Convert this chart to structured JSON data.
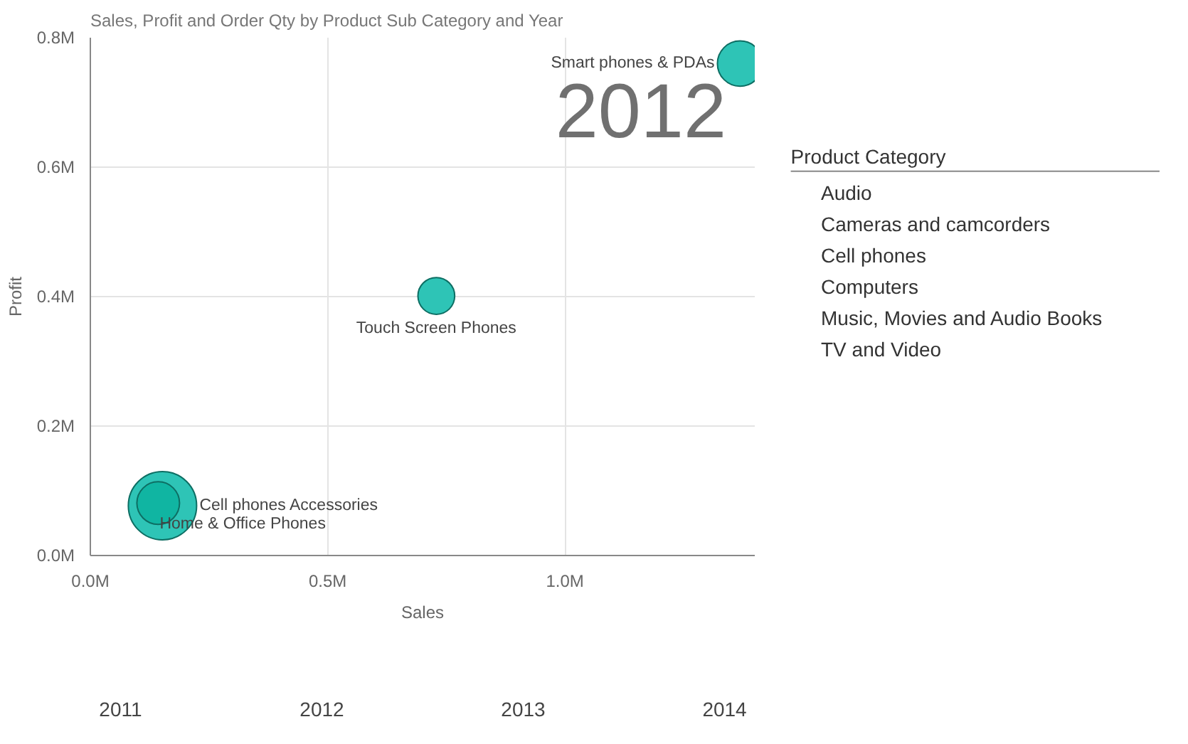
{
  "chart_data": {
    "type": "bubble",
    "title": "Sales, Profit and Order Qty by Product Sub Category and Year",
    "xlabel": "Sales",
    "ylabel": "Profit",
    "xlim": [
      0,
      1.4
    ],
    "ylim": [
      0,
      0.8
    ],
    "xticks": [
      {
        "value": 0,
        "label": "0.0M"
      },
      {
        "value": 0.5,
        "label": "0.5M"
      },
      {
        "value": 1.0,
        "label": "1.0M"
      }
    ],
    "yticks": [
      {
        "value": 0,
        "label": "0.0M"
      },
      {
        "value": 0.2,
        "label": "0.2M"
      },
      {
        "value": 0.4,
        "label": "0.4M"
      },
      {
        "value": 0.6,
        "label": "0.6M"
      },
      {
        "value": 0.8,
        "label": "0.8M"
      }
    ],
    "grid": true,
    "series": [
      {
        "name": "Cell phones Accessories",
        "color": "#2ec4b6",
        "x": [
          0.152
        ],
        "values": [
          0.077
        ],
        "sizes": [
          1
        ]
      },
      {
        "name": "Home & Office Phones",
        "color": "#10b5a2",
        "x": [
          0.143
        ],
        "values": [
          0.081
        ],
        "sizes": [
          0.39
        ]
      },
      {
        "name": "Touch Screen Phones",
        "color": "#2ec4b6",
        "x": [
          0.729
        ],
        "values": [
          0.401
        ],
        "sizes": [
          0.29
        ]
      },
      {
        "name": "Smart phones & PDAs",
        "color": "#2ec4b6",
        "x": [
          1.369
        ],
        "values": [
          0.76
        ],
        "sizes": [
          0.44
        ]
      }
    ],
    "annotations": [
      "2012",
      "Product Category",
      "Audio",
      "Cameras and camcorders",
      "Cell phones",
      "Computers",
      "Music, Movies and Audio Books",
      "TV and Video",
      "2011",
      "2012",
      "2013",
      "2014"
    ]
  }
}
